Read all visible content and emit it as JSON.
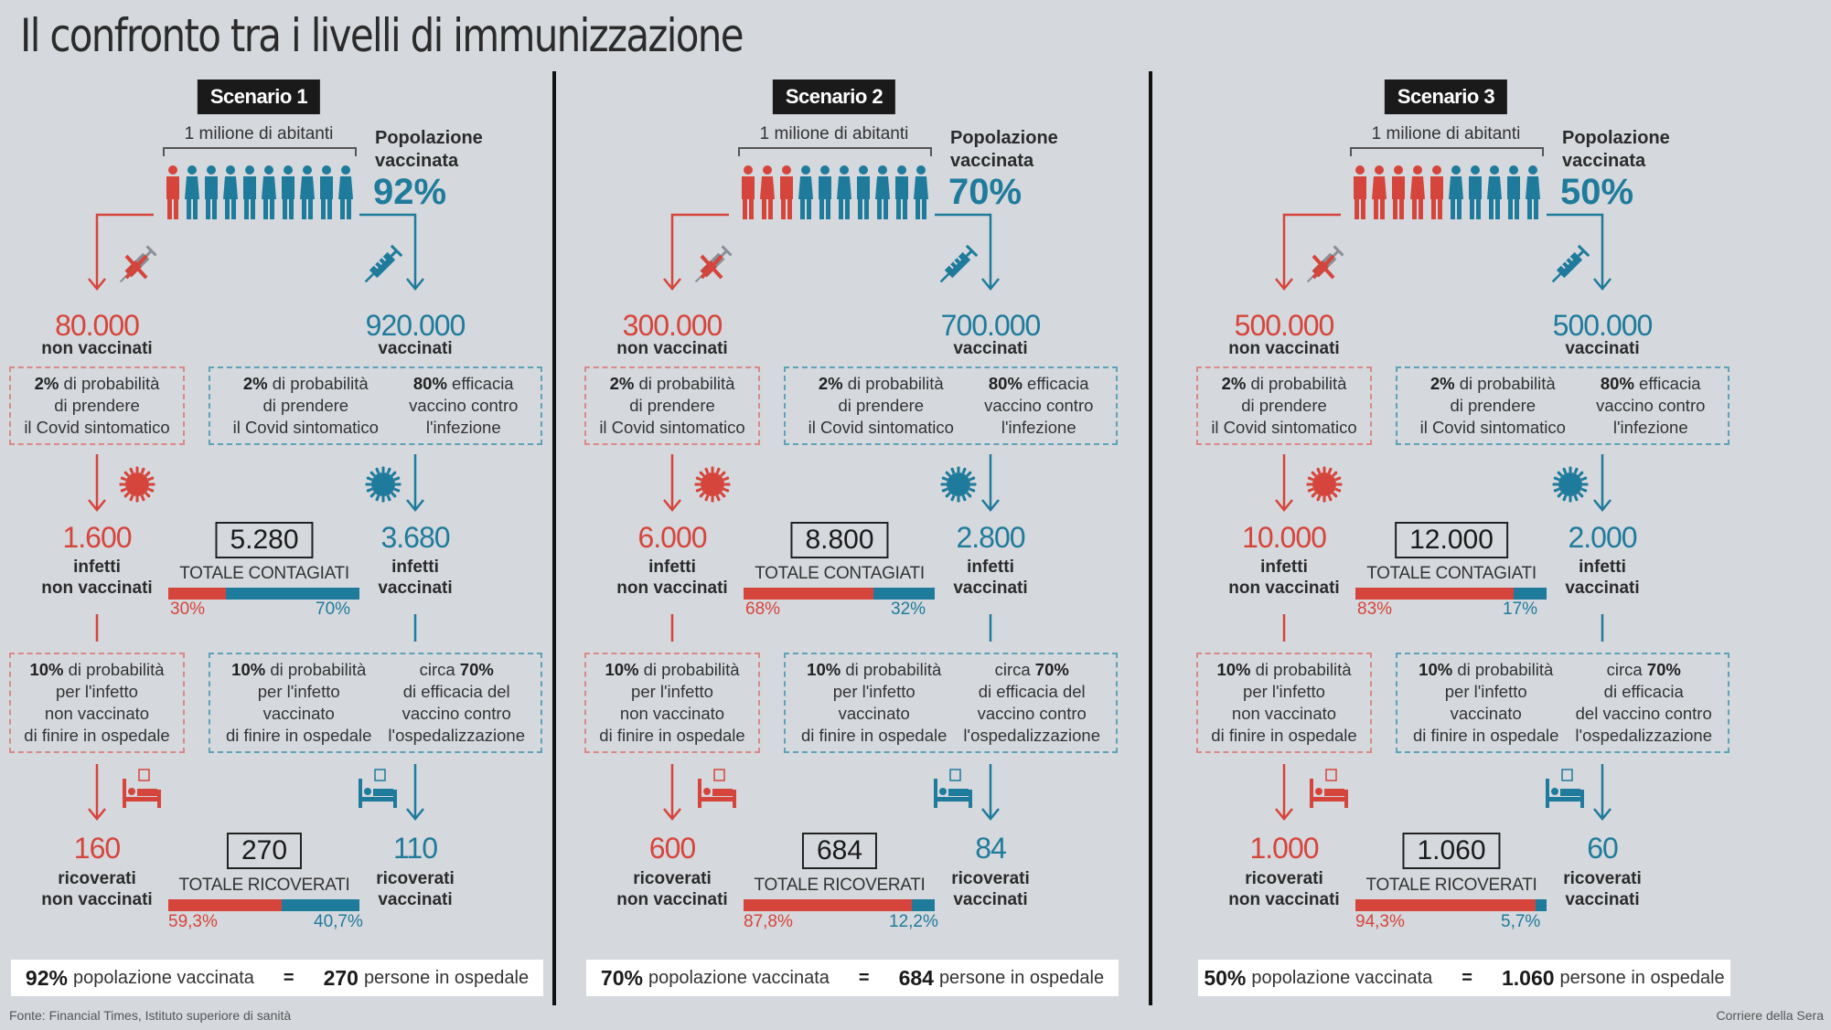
{
  "title": "Il confronto tra i livelli di immunizzazione",
  "source": "Fonte: Financial Times, Istituto superiore di sanità",
  "credit": "Corriere della Sera",
  "colors": {
    "unvaccinated": "#d6453b",
    "vaccinated": "#1f7b9b",
    "background": "#d5d8dd"
  },
  "common": {
    "population_label": "1 milione di abitanti",
    "pop_line1": "Popolazione",
    "pop_line2": "vaccinata",
    "non_vaccinati": "non vaccinati",
    "vaccinati": "vaccinati",
    "infetti": "infetti",
    "ricoverati": "ricoverati",
    "totale_contagiati": "TOTALE CONTAGIATI",
    "totale_ricoverati": "TOTALE RICOVERATI",
    "box1_red": {
      "bold": "2%",
      "l1": " di probabilità",
      "l2": "di prendere",
      "l3": "il Covid sintomatico"
    },
    "box1_blue_a": {
      "bold": "2%",
      "l1": " di probabilità",
      "l2": "di prendere",
      "l3": "il Covid sintomatico"
    },
    "box1_blue_b": {
      "bold": "80%",
      "l1": " efficacia",
      "l2": "vaccino contro",
      "l3": "l'infezione"
    },
    "box2_red": {
      "bold": "10%",
      "l1": " di probabilità",
      "l2": "per l'infetto",
      "l3": "non vaccinato",
      "l4": "di finire in ospedale"
    },
    "box2_blue_a": {
      "bold": "10%",
      "l1": " di probabilità",
      "l2": "per l'infetto",
      "l3": "vaccinato",
      "l4": "di finire in ospedale"
    },
    "summary_mid": "popolazione vaccinata",
    "summary_eq": "=",
    "summary_end": "persone in ospedale"
  },
  "scenarios": [
    {
      "label": "Scenario 1",
      "vaccinated_pct": "92%",
      "people_unvaccinated": 1,
      "people_total": 10,
      "unvaccinated": "80.000",
      "vaccinated": "920.000",
      "infected_unvacc": "1.600",
      "infected_vacc": "3.680",
      "infected_total": "5.280",
      "infected_split": [
        30,
        70
      ],
      "infected_split_labels": [
        "30%",
        "70%"
      ],
      "box2_blue_b": {
        "l1": "circa ",
        "bold": "70%",
        "l2": "di efficacia del",
        "l3": "vaccino contro",
        "l4": "l'ospedalizzazione"
      },
      "hosp_unvacc": "160",
      "hosp_vacc": "110",
      "hosp_total": "270",
      "hosp_split": [
        59.3,
        40.7
      ],
      "hosp_split_labels": [
        "59,3%",
        "40,7%"
      ],
      "summary_pct": "92%",
      "summary_count": "270"
    },
    {
      "label": "Scenario 2",
      "vaccinated_pct": "70%",
      "people_unvaccinated": 3,
      "people_total": 10,
      "unvaccinated": "300.000",
      "vaccinated": "700.000",
      "infected_unvacc": "6.000",
      "infected_vacc": "2.800",
      "infected_total": "8.800",
      "infected_split": [
        68,
        32
      ],
      "infected_split_labels": [
        "68%",
        "32%"
      ],
      "box2_blue_b": {
        "l1": "circa ",
        "bold": "70%",
        "l2": "di efficacia del",
        "l3": "vaccino contro",
        "l4": "l'ospedalizzazione"
      },
      "hosp_unvacc": "600",
      "hosp_vacc": "84",
      "hosp_total": "684",
      "hosp_split": [
        87.8,
        12.2
      ],
      "hosp_split_labels": [
        "87,8%",
        "12,2%"
      ],
      "summary_pct": "70%",
      "summary_count": "684"
    },
    {
      "label": "Scenario 3",
      "vaccinated_pct": "50%",
      "people_unvaccinated": 5,
      "people_total": 10,
      "unvaccinated": "500.000",
      "vaccinated": "500.000",
      "infected_unvacc": "10.000",
      "infected_vacc": "2.000",
      "infected_total": "12.000",
      "infected_split": [
        83,
        17
      ],
      "infected_split_labels": [
        "83%",
        "17%"
      ],
      "box2_blue_b": {
        "l1": "circa ",
        "bold": "70%",
        "l2": "di efficacia",
        "l3": "del vaccino contro",
        "l4": "l'ospedalizzazione"
      },
      "hosp_unvacc": "1.000",
      "hosp_vacc": "60",
      "hosp_total": "1.060",
      "hosp_split": [
        94.3,
        5.7
      ],
      "hosp_split_labels": [
        "94,3%",
        "5,7%"
      ],
      "summary_pct": "50%",
      "summary_count": "1.060"
    }
  ],
  "chart_data": {
    "type": "bar",
    "title": "Il confronto tra i livelli di immunizzazione",
    "categories": [
      "Scenario 1 (92%)",
      "Scenario 2 (70%)",
      "Scenario 3 (50%)"
    ],
    "series": [
      {
        "name": "Vaccinati",
        "values": [
          920000,
          700000,
          500000
        ]
      },
      {
        "name": "Non vaccinati",
        "values": [
          80000,
          300000,
          500000
        ]
      },
      {
        "name": "Infetti non vaccinati",
        "values": [
          1600,
          6000,
          10000
        ]
      },
      {
        "name": "Infetti vaccinati",
        "values": [
          3680,
          2800,
          2000
        ]
      },
      {
        "name": "Totale contagiati",
        "values": [
          5280,
          8800,
          12000
        ]
      },
      {
        "name": "Ricoverati non vaccinati",
        "values": [
          160,
          600,
          1000
        ]
      },
      {
        "name": "Ricoverati vaccinati",
        "values": [
          110,
          84,
          60
        ]
      },
      {
        "name": "Totale ricoverati",
        "values": [
          270,
          684,
          1060
        ]
      }
    ],
    "stacked_bars": {
      "contagiati_pct_unvacc_vacc": [
        [
          30,
          70
        ],
        [
          68,
          32
        ],
        [
          83,
          17
        ]
      ],
      "ricoverati_pct_unvacc_vacc": [
        [
          59.3,
          40.7
        ],
        [
          87.8,
          12.2
        ],
        [
          94.3,
          5.7
        ]
      ]
    },
    "xlabel": "",
    "ylabel": ""
  }
}
